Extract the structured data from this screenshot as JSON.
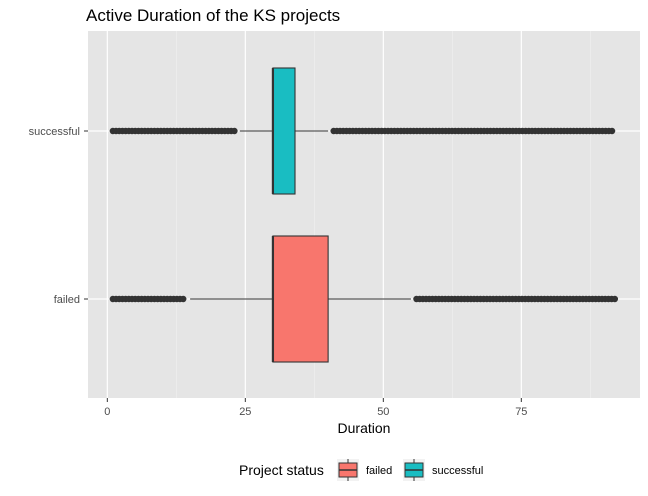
{
  "chart_data": {
    "type": "boxplot",
    "orientation": "horizontal",
    "title": "Active Duration of the KS projects",
    "xlabel": "Duration",
    "ylabel": "",
    "xlim": [
      -3.5,
      96.5
    ],
    "x_ticks": [
      0,
      25,
      50,
      75
    ],
    "x_tick_labels": [
      "0",
      "25",
      "50",
      "75"
    ],
    "categories": [
      "successful",
      "failed"
    ],
    "grid": true,
    "legend": {
      "title": "Project status",
      "position": "bottom",
      "entries": [
        "failed",
        "successful"
      ]
    },
    "series": [
      {
        "category": "successful",
        "color": "#19BDC2",
        "whisker_low": 24,
        "q1": 30,
        "median": 30,
        "q3": 34,
        "whisker_high": 40,
        "outliers_low": [
          1,
          23.5
        ],
        "outliers_high": [
          41,
          92
        ]
      },
      {
        "category": "failed",
        "color": "#F8766D",
        "whisker_low": 15,
        "q1": 30,
        "median": 30,
        "q3": 40,
        "whisker_high": 55,
        "outliers_low": [
          1,
          14
        ],
        "outliers_high": [
          56,
          92
        ]
      }
    ]
  }
}
